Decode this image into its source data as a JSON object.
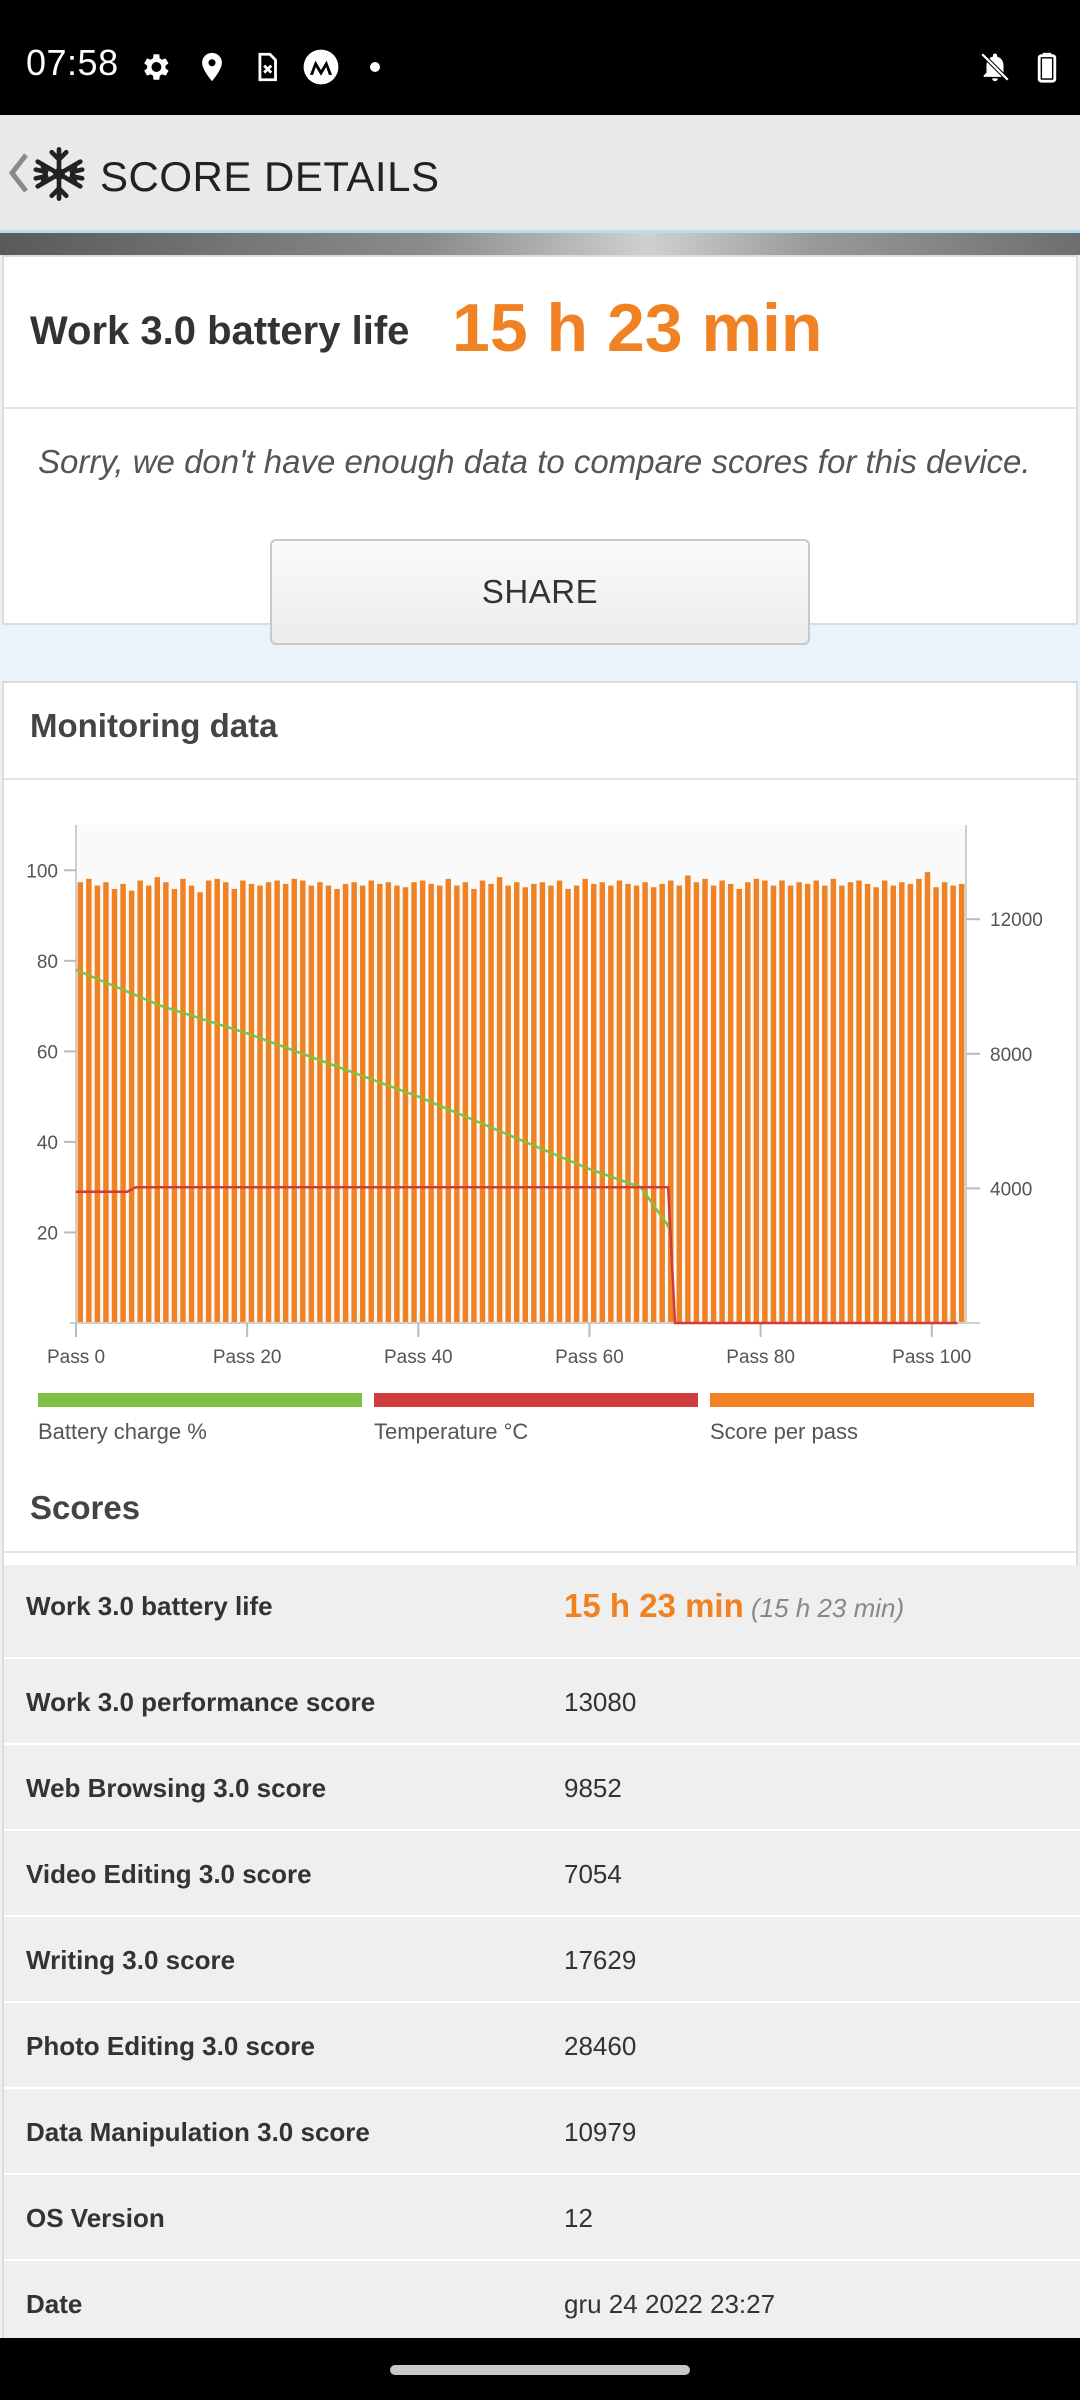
{
  "status_bar": {
    "time": "07:58",
    "left_icons": [
      "gear-icon",
      "location-pin-icon",
      "sim-card-icon",
      "motorola-icon"
    ],
    "right_icons": [
      "bell-off-icon",
      "battery-icon"
    ]
  },
  "app_bar": {
    "title": "SCORE DETAILS",
    "logo_icon": "snowflake-icon",
    "back_icon": "chevron-left-icon"
  },
  "battery": {
    "label": "Work 3.0 battery life",
    "value": "15 h 23 min",
    "compare_message": "Sorry, we don't have enough data to compare scores for this device."
  },
  "share": {
    "label": "SHARE"
  },
  "monitoring": {
    "title": "Monitoring data",
    "legend": [
      {
        "label": "Battery charge %",
        "color": "#7dc242"
      },
      {
        "label": "Temperature °C",
        "color": "#d23b3b"
      },
      {
        "label": "Score per pass",
        "color": "#f08223"
      }
    ]
  },
  "chart_data": {
    "type": "bar",
    "x_tick_labels": [
      "Pass 0",
      "Pass 20",
      "Pass 40",
      "Pass 60",
      "Pass 80",
      "Pass 100"
    ],
    "x_ticks": [
      0,
      20,
      40,
      60,
      80,
      100
    ],
    "xlim": [
      0,
      104
    ],
    "y_left": {
      "ticks": [
        20,
        40,
        60,
        80,
        100
      ],
      "ylim": [
        0,
        110
      ]
    },
    "y_right": {
      "ticks": [
        4000,
        8000,
        12000
      ],
      "ylim": [
        0,
        14800
      ]
    },
    "series": [
      {
        "name": "Score per pass",
        "axis": "right",
        "values": [
          13100,
          13200,
          13000,
          13100,
          12900,
          13050,
          12850,
          13150,
          13000,
          13250,
          13100,
          12900,
          13200,
          13000,
          12800,
          13150,
          13200,
          13100,
          12900,
          13150,
          13050,
          13000,
          13100,
          13150,
          13050,
          13200,
          13150,
          13000,
          13100,
          13000,
          12900,
          13050,
          13100,
          13000,
          13150,
          13050,
          13100,
          13000,
          12950,
          13100,
          13150,
          13050,
          13000,
          13200,
          13000,
          13100,
          12900,
          13150,
          13050,
          13250,
          13000,
          13100,
          12950,
          13050,
          13100,
          13000,
          13150,
          12900,
          13000,
          13200,
          13050,
          13100,
          13000,
          13150,
          13050,
          13000,
          13100,
          12950,
          13050,
          13150,
          13000,
          13300,
          13100,
          13200,
          13000,
          13150,
          13050,
          12900,
          13100,
          13200,
          13150,
          13000,
          13150,
          13000,
          13100,
          13050,
          13150,
          13000,
          13200,
          13000,
          13100,
          13150,
          13050,
          12950,
          13150,
          13000,
          13100,
          13050,
          13200,
          13400,
          12950,
          13100,
          13000,
          13050
        ],
        "color": "#f08223"
      },
      {
        "name": "Battery charge %",
        "axis": "left",
        "x": [
          0,
          5,
          10,
          20,
          30,
          40,
          50,
          60,
          66,
          69,
          69.5
        ],
        "values": [
          78,
          74,
          70,
          64,
          57,
          50,
          42,
          34,
          30,
          22,
          20
        ],
        "color": "#7dc242"
      },
      {
        "name": "Temperature °C",
        "axis": "left",
        "x": [
          0,
          6,
          7,
          69,
          69.2,
          70,
          103
        ],
        "values": [
          29,
          29,
          30,
          30,
          30,
          0,
          0
        ],
        "color": "#d23b3b"
      }
    ],
    "grid": false,
    "legend_placement": "bottom"
  },
  "scores": {
    "title": "Scores",
    "rows": [
      {
        "label": "Work 3.0 battery life",
        "value": "15 h 23 min",
        "sub": "(15 h 23 min)"
      },
      {
        "label": "Work 3.0 performance score",
        "value": "13080"
      },
      {
        "label": "Web Browsing 3.0 score",
        "value": "9852"
      },
      {
        "label": "Video Editing 3.0 score",
        "value": "7054"
      },
      {
        "label": "Writing 3.0 score",
        "value": "17629"
      },
      {
        "label": "Photo Editing 3.0 score",
        "value": "28460"
      },
      {
        "label": "Data Manipulation 3.0 score",
        "value": "10979"
      },
      {
        "label": "OS Version",
        "value": "12"
      },
      {
        "label": "Date",
        "value": "gru 24 2022 23:27"
      }
    ]
  }
}
